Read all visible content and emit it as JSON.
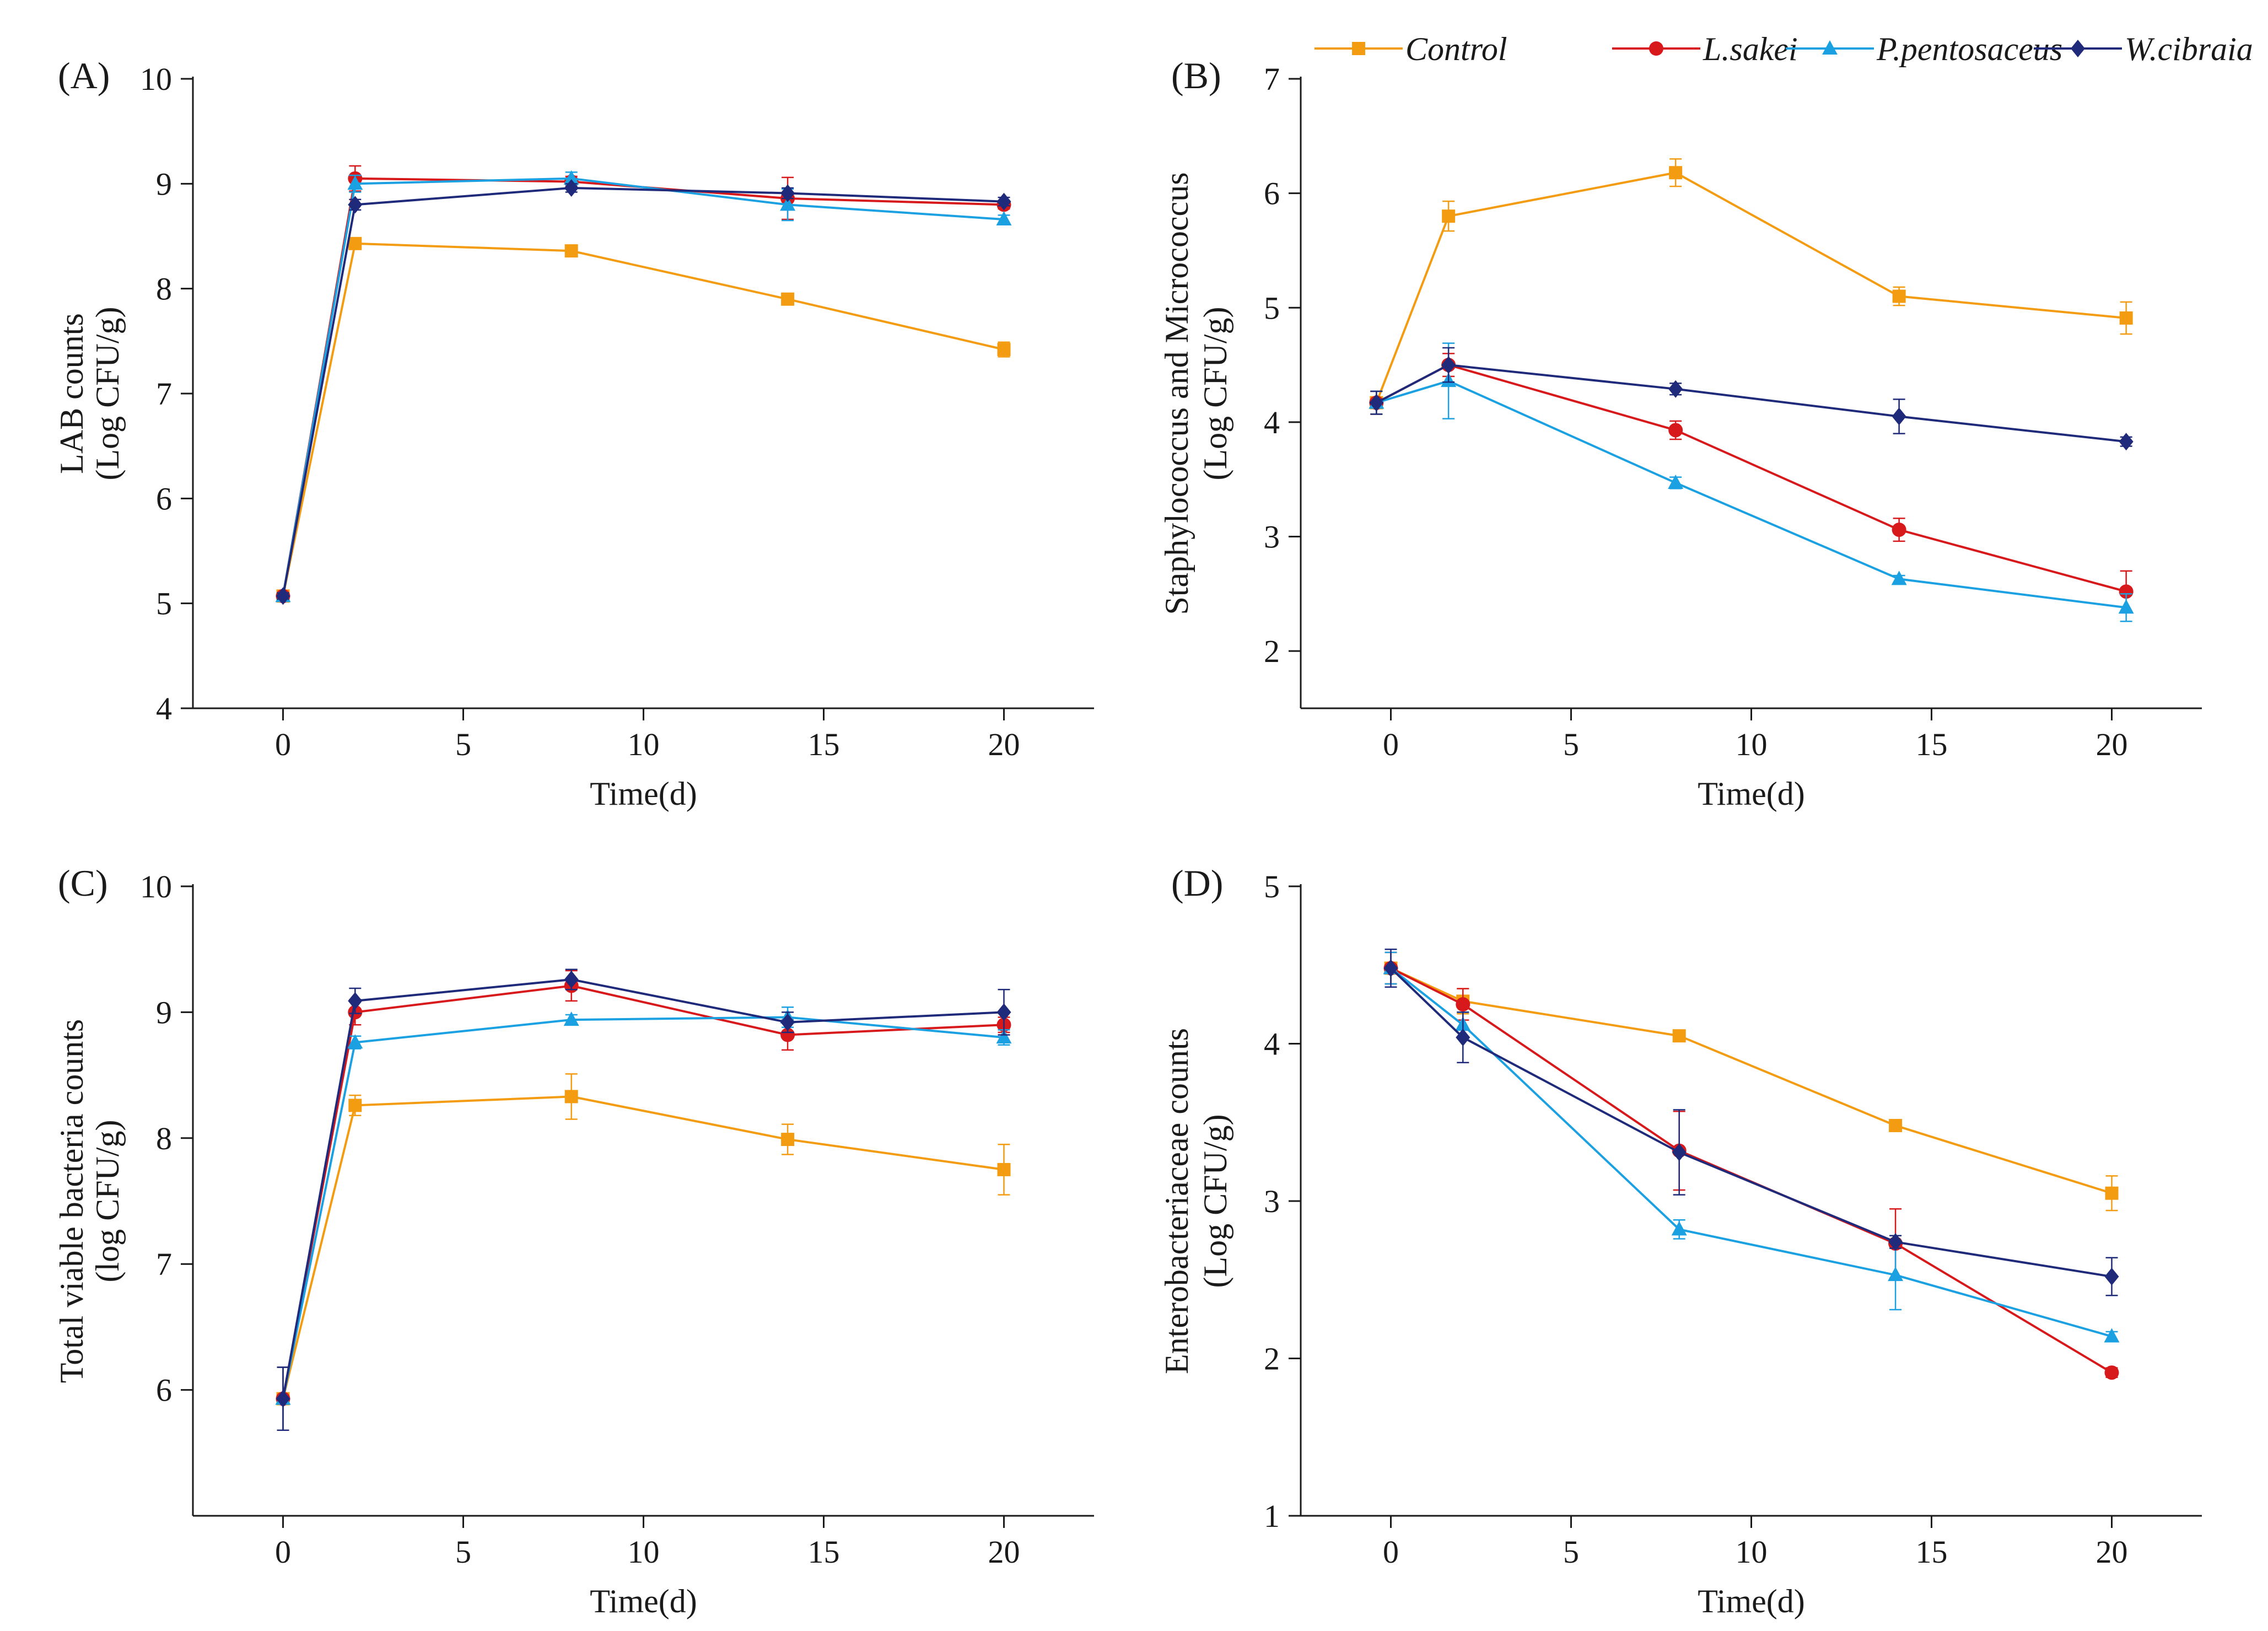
{
  "legend": {
    "entries": [
      {
        "name": "Control",
        "color": "#f39c12",
        "marker": "square"
      },
      {
        "name": "L.sakei",
        "color": "#d7191c",
        "marker": "circle"
      },
      {
        "name": "P.pentosaceus",
        "color": "#1ba1e2",
        "marker": "triangle"
      },
      {
        "name": "W.cibraia",
        "color": "#1f2a7a",
        "marker": "diamond"
      }
    ],
    "placement": "top-right"
  },
  "chart_data": [
    {
      "type": "line",
      "panel_label": "(A)",
      "xlabel": "Time(d)",
      "ylabel_lines": [
        "LAB counts",
        "(Log CFU/g)"
      ],
      "xlim": [
        -2.5,
        22.5
      ],
      "ylim": [
        4,
        10
      ],
      "xticks": [
        0,
        5,
        10,
        15,
        20
      ],
      "xtick_labels": [
        "0",
        "5",
        "10",
        "15",
        "20"
      ],
      "yticks": [
        4,
        5,
        6,
        7,
        8,
        9,
        10
      ],
      "ytick_labels": [
        "4",
        "5",
        "6",
        "7",
        "8",
        "9",
        "10"
      ],
      "series": [
        {
          "name": "Control",
          "x": [
            0,
            2,
            8,
            14,
            20
          ],
          "values": [
            5.07,
            8.43,
            8.36,
            7.9,
            7.42
          ],
          "errors": [
            0.03,
            0.05,
            0.04,
            0.05,
            0.07
          ]
        },
        {
          "name": "L.sakei",
          "x": [
            0,
            2,
            8,
            14,
            20
          ],
          "values": [
            5.07,
            9.05,
            9.02,
            8.86,
            8.8
          ],
          "errors": [
            0.03,
            0.12,
            0.05,
            0.2,
            0.04
          ]
        },
        {
          "name": "P.pentosaceus",
          "x": [
            0,
            2,
            8,
            14,
            20
          ],
          "values": [
            5.07,
            9.0,
            9.05,
            8.8,
            8.66
          ],
          "errors": [
            0.03,
            0.08,
            0.06,
            0.15,
            0.04
          ]
        },
        {
          "name": "W.cibraia",
          "x": [
            0,
            2,
            8,
            14,
            20
          ],
          "values": [
            5.07,
            8.8,
            8.96,
            8.91,
            8.83
          ],
          "errors": [
            0.03,
            0.05,
            0.04,
            0.05,
            0.04
          ]
        }
      ]
    },
    {
      "type": "line",
      "panel_label": "(B)",
      "xlabel": "Time(d)",
      "ylabel_lines": [
        "Staphylococcus and Micrococcus",
        "(Log CFU/g)"
      ],
      "xlim": [
        -2.5,
        22.5
      ],
      "ylim": [
        1.5,
        7
      ],
      "xticks": [
        0,
        5,
        10,
        15,
        20
      ],
      "xtick_labels": [
        "0",
        "5",
        "10",
        "15",
        "20"
      ],
      "yticks": [
        2,
        3,
        4,
        5,
        6,
        7
      ],
      "ytick_labels": [
        "2",
        "3",
        "4",
        "5",
        "6",
        "7"
      ],
      "series": [
        {
          "name": "Control",
          "x": [
            -0.4,
            1.6,
            7.9,
            14.1,
            20.4
          ],
          "values": [
            4.17,
            5.8,
            6.18,
            5.1,
            4.91
          ],
          "errors": [
            0.1,
            0.13,
            0.12,
            0.08,
            0.14
          ]
        },
        {
          "name": "L.sakei",
          "x": [
            -0.4,
            1.6,
            7.9,
            14.1,
            20.4
          ],
          "values": [
            4.17,
            4.5,
            3.93,
            3.06,
            2.52
          ],
          "errors": [
            0.1,
            0.1,
            0.08,
            0.1,
            0.18
          ]
        },
        {
          "name": "P.pentosaceus",
          "x": [
            -0.4,
            1.6,
            7.9,
            14.1,
            20.4
          ],
          "values": [
            4.17,
            4.36,
            3.47,
            2.63,
            2.38
          ],
          "errors": [
            0.1,
            0.33,
            0.05,
            0.03,
            0.12
          ]
        },
        {
          "name": "W.cibraia",
          "x": [
            -0.4,
            1.6,
            7.9,
            14.1,
            20.4
          ],
          "values": [
            4.17,
            4.5,
            4.29,
            4.05,
            3.83
          ],
          "errors": [
            0.1,
            0.15,
            0.05,
            0.15,
            0.04
          ]
        }
      ]
    },
    {
      "type": "line",
      "panel_label": "(C)",
      "xlabel": "Time(d)",
      "ylabel_lines": [
        "Total viable bacteria counts",
        "(log CFU/g)"
      ],
      "xlim": [
        -2.5,
        22.5
      ],
      "ylim": [
        5,
        10
      ],
      "xticks": [
        0,
        5,
        10,
        15,
        20
      ],
      "xtick_labels": [
        "0",
        "5",
        "10",
        "15",
        "20"
      ],
      "yticks": [
        6,
        7,
        8,
        9,
        10
      ],
      "ytick_labels": [
        "6",
        "7",
        "8",
        "9",
        "10"
      ],
      "series": [
        {
          "name": "Control",
          "x": [
            0,
            2,
            8,
            14,
            20
          ],
          "values": [
            5.93,
            8.26,
            8.33,
            7.99,
            7.75
          ],
          "errors": [
            0.25,
            0.08,
            0.18,
            0.12,
            0.2
          ]
        },
        {
          "name": "L.sakei",
          "x": [
            0,
            2,
            8,
            14,
            20
          ],
          "values": [
            5.93,
            9.0,
            9.21,
            8.82,
            8.9
          ],
          "errors": [
            0.25,
            0.1,
            0.12,
            0.12,
            0.06
          ]
        },
        {
          "name": "P.pentosaceus",
          "x": [
            0,
            2,
            8,
            14,
            20
          ],
          "values": [
            5.93,
            8.76,
            8.94,
            8.96,
            8.8
          ],
          "errors": [
            0.25,
            0.05,
            0.04,
            0.08,
            0.06
          ]
        },
        {
          "name": "W.cibraia",
          "x": [
            0,
            2,
            8,
            14,
            20
          ],
          "values": [
            5.93,
            9.09,
            9.26,
            8.92,
            9.0
          ],
          "errors": [
            0.25,
            0.1,
            0.08,
            0.08,
            0.18
          ]
        }
      ]
    },
    {
      "type": "line",
      "panel_label": "(D)",
      "xlabel": "Time(d)",
      "ylabel_lines": [
        "Enterobacteriaceae counts",
        "(Log CFU/g)"
      ],
      "xlim": [
        -2.5,
        22.5
      ],
      "ylim": [
        1,
        5
      ],
      "xticks": [
        0,
        5,
        10,
        15,
        20
      ],
      "xtick_labels": [
        "0",
        "5",
        "10",
        "15",
        "20"
      ],
      "yticks": [
        1,
        2,
        3,
        4,
        5
      ],
      "ytick_labels": [
        "1",
        "2",
        "3",
        "4",
        "5"
      ],
      "series": [
        {
          "name": "Control",
          "x": [
            0,
            2,
            8,
            14,
            20
          ],
          "values": [
            4.48,
            4.27,
            4.05,
            3.48,
            3.05
          ],
          "errors": [
            0.1,
            0.08,
            0.03,
            0.03,
            0.11
          ]
        },
        {
          "name": "L.sakei",
          "x": [
            0,
            2,
            8,
            14,
            20
          ],
          "values": [
            4.48,
            4.25,
            3.32,
            2.73,
            1.91
          ],
          "errors": [
            0.1,
            0.1,
            0.25,
            0.22,
            0.03
          ]
        },
        {
          "name": "P.pentosaceus",
          "x": [
            0,
            2,
            8,
            14,
            20
          ],
          "values": [
            4.48,
            4.12,
            2.82,
            2.53,
            2.14
          ],
          "errors": [
            0.1,
            0.08,
            0.06,
            0.22,
            0.03
          ]
        },
        {
          "name": "W.cibraia",
          "x": [
            0,
            2,
            8,
            14,
            20
          ],
          "values": [
            4.48,
            4.04,
            3.31,
            2.74,
            2.52
          ],
          "errors": [
            0.12,
            0.16,
            0.27,
            0.04,
            0.12
          ]
        }
      ]
    }
  ]
}
